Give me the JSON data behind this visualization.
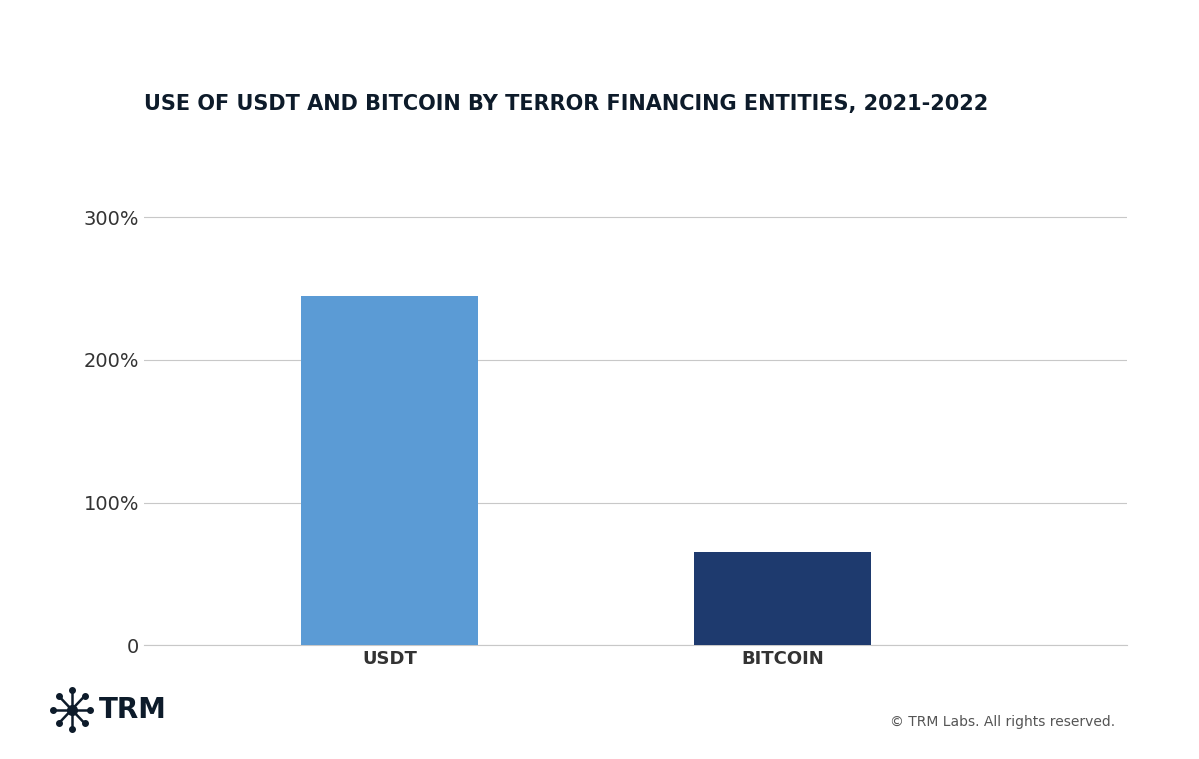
{
  "title": "USE OF USDT AND BITCOIN BY TERROR FINANCING ENTITIES, 2021-2022",
  "categories": [
    "USDT",
    "BITCOIN"
  ],
  "values": [
    245,
    65
  ],
  "bar_colors": [
    "#5B9BD5",
    "#1E3A6E"
  ],
  "ylim": [
    0,
    330
  ],
  "yticks": [
    0,
    100,
    200,
    300
  ],
  "ytick_labels": [
    "0",
    "100%",
    "200%",
    "300%"
  ],
  "background_color": "#FFFFFF",
  "grid_color": "#C8C8C8",
  "title_fontsize": 15,
  "tick_fontsize": 14,
  "xlabel_fontsize": 13,
  "bar_width": 0.18,
  "x_positions": [
    0.25,
    0.65
  ],
  "xlim": [
    0.0,
    1.0
  ],
  "footer_right": "© TRM Labs. All rights reserved.",
  "title_color": "#0D1B2A",
  "tick_color": "#333333",
  "footer_color": "#555555",
  "logo_color": "#0D1B2A"
}
